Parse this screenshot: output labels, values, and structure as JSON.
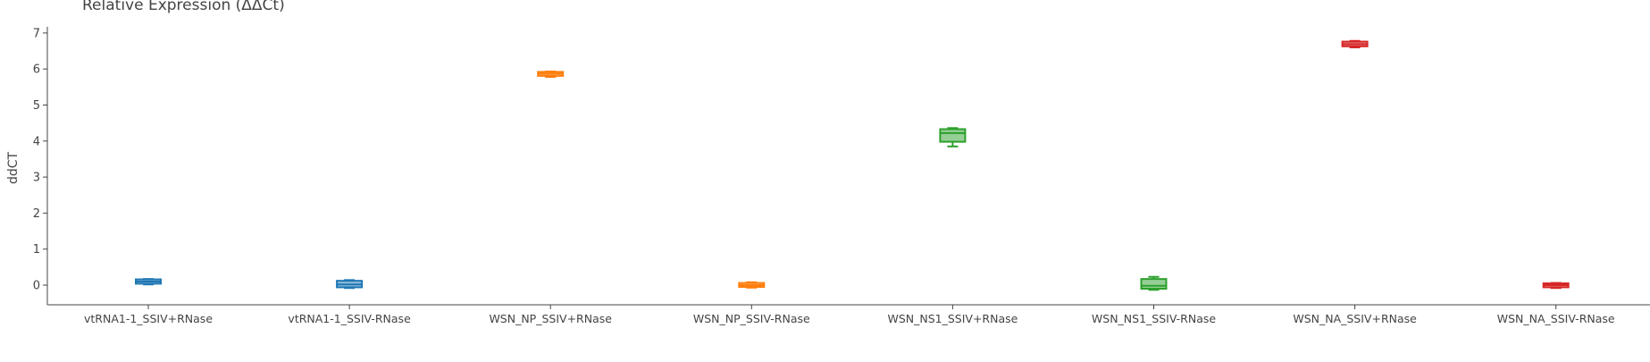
{
  "chart_data": {
    "type": "box",
    "title": "Relative Expression (ΔΔCt)",
    "xlabel": "",
    "ylabel": "ddCT",
    "ylim": [
      -0.5,
      7.2
    ],
    "yticks": [
      0,
      1,
      2,
      3,
      4,
      5,
      6,
      7
    ],
    "grid": false,
    "legend": "none",
    "categories": [
      "vtRNA1-1_SSIV+RNase",
      "vtRNA1-1_SSIV-RNase",
      "WSN_NP_SSIV+RNase",
      "WSN_NP_SSIV-RNase",
      "WSN_NS1_SSIV+RNase",
      "WSN_NS1_SSIV-RNase",
      "WSN_NA_SSIV+RNase",
      "WSN_NA_SSIV-RNase"
    ],
    "boxes": [
      {
        "category": "vtRNA1-1_SSIV+RNase",
        "min": 0.02,
        "q1": 0.04,
        "median": 0.1,
        "q3": 0.16,
        "max": 0.17,
        "color": "#1f77b4"
      },
      {
        "category": "vtRNA1-1_SSIV-RNase",
        "min": -0.08,
        "q1": -0.06,
        "median": 0.02,
        "q3": 0.12,
        "max": 0.14,
        "color": "#1f77b4"
      },
      {
        "category": "WSN_NP_SSIV+RNase",
        "min": 5.78,
        "q1": 5.81,
        "median": 5.87,
        "q3": 5.92,
        "max": 5.93,
        "color": "#ff7f0e"
      },
      {
        "category": "WSN_NP_SSIV-RNase",
        "min": -0.07,
        "q1": -0.05,
        "median": 0.0,
        "q3": 0.06,
        "max": 0.08,
        "color": "#ff7f0e"
      },
      {
        "category": "WSN_NS1_SSIV+RNase",
        "min": 3.85,
        "q1": 3.98,
        "median": 4.22,
        "q3": 4.33,
        "max": 4.36,
        "color": "#2ca02c"
      },
      {
        "category": "WSN_NS1_SSIV-RNase",
        "min": -0.13,
        "q1": -0.1,
        "median": -0.02,
        "q3": 0.17,
        "max": 0.23,
        "color": "#2ca02c"
      },
      {
        "category": "WSN_NA_SSIV+RNase",
        "min": 6.6,
        "q1": 6.63,
        "median": 6.69,
        "q3": 6.76,
        "max": 6.78,
        "color": "#d62728"
      },
      {
        "category": "WSN_NA_SSIV-RNase",
        "min": -0.08,
        "q1": -0.06,
        "median": 0.0,
        "q3": 0.05,
        "max": 0.06,
        "color": "#d62728"
      }
    ]
  }
}
